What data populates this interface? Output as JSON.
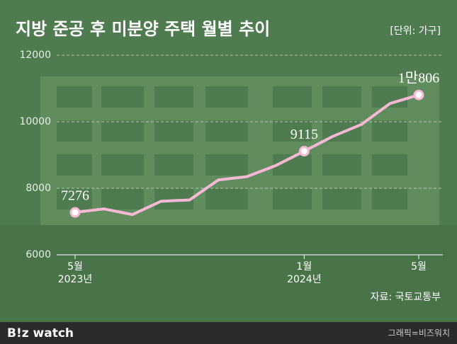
{
  "chart_data": {
    "type": "line",
    "title": "지방 준공 후 미분양 주택 월별 추이",
    "unit": "[단위: 가구]",
    "source": "자료: 국토교통부",
    "credit": "그래픽=비즈워치",
    "logo": "B!z watch",
    "categories": [
      "5월",
      null,
      null,
      null,
      null,
      null,
      null,
      null,
      "1월",
      null,
      null,
      null,
      "5월"
    ],
    "category_years": [
      "2023년",
      null,
      null,
      null,
      null,
      null,
      null,
      null,
      "2024년",
      null,
      null,
      null,
      null
    ],
    "series": [
      {
        "name": "지방 준공 후 미분양 주택",
        "color": "#f5b9d6",
        "values": [
          7276,
          7380,
          7210,
          7610,
          7650,
          8250,
          8350,
          8680,
          9115,
          9560,
          9920,
          10550,
          10806
        ],
        "value_labels": [
          "7276",
          null,
          null,
          null,
          null,
          null,
          null,
          null,
          "9115",
          null,
          null,
          null,
          "1만806"
        ]
      }
    ],
    "ylim": [
      6000,
      12000
    ],
    "yticks": [
      6000,
      8000,
      10000,
      12000
    ],
    "grid": true
  }
}
